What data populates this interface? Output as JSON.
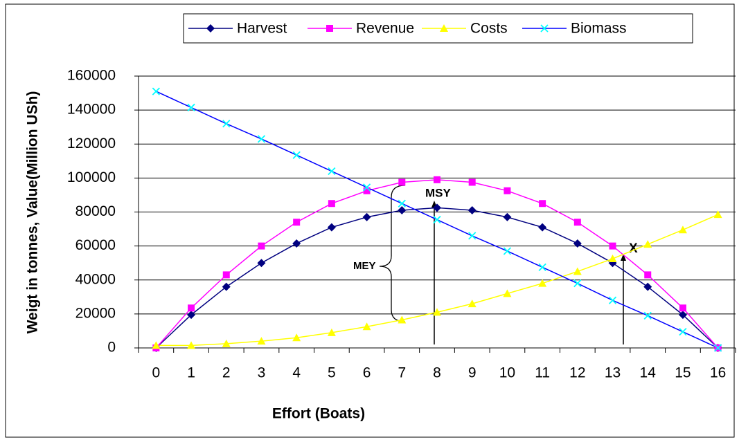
{
  "chart_data": {
    "type": "line",
    "x_label": "Effort (Boats)",
    "y_label": "Weigt in tonnes, Value(Million USh)",
    "categories": [
      "0",
      "1",
      "2",
      "3",
      "4",
      "5",
      "6",
      "7",
      "8",
      "9",
      "10",
      "11",
      "12",
      "13",
      "14",
      "15",
      "16"
    ],
    "ylim": [
      0,
      160000
    ],
    "yticks": [
      0,
      20000,
      40000,
      60000,
      80000,
      100000,
      120000,
      140000,
      160000
    ],
    "grid": true,
    "legend": "top",
    "annotations": [
      "MSY",
      "MEY",
      "X"
    ],
    "series": [
      {
        "name": "Harvest",
        "color": "#000080",
        "marker": "diamond",
        "marker_color": "#000080",
        "values": [
          0,
          19500,
          36000,
          50000,
          61500,
          71000,
          77000,
          81000,
          82500,
          81000,
          77000,
          71000,
          61500,
          50000,
          36000,
          19500,
          0
        ]
      },
      {
        "name": "Revenue",
        "color": "#ff00ff",
        "marker": "square",
        "marker_color": "#ff00ff",
        "values": [
          0,
          23500,
          43000,
          60000,
          74000,
          85000,
          92500,
          97500,
          99000,
          97500,
          92500,
          85000,
          74000,
          60000,
          43000,
          23500,
          0
        ]
      },
      {
        "name": "Costs",
        "color": "#ffff00",
        "marker": "triangle",
        "marker_color": "#ffff00",
        "values": [
          1500,
          1500,
          2500,
          4000,
          6000,
          9000,
          12500,
          16500,
          21000,
          26000,
          32000,
          38000,
          45000,
          52500,
          61000,
          69500,
          78500
        ]
      },
      {
        "name": "Biomass",
        "color": "#0000ff",
        "marker": "x",
        "marker_color": "#00ffff",
        "values": [
          151000,
          141500,
          132000,
          123000,
          113500,
          104000,
          94500,
          85000,
          75500,
          66000,
          57000,
          47500,
          38000,
          28000,
          19000,
          9500,
          0
        ]
      }
    ]
  }
}
